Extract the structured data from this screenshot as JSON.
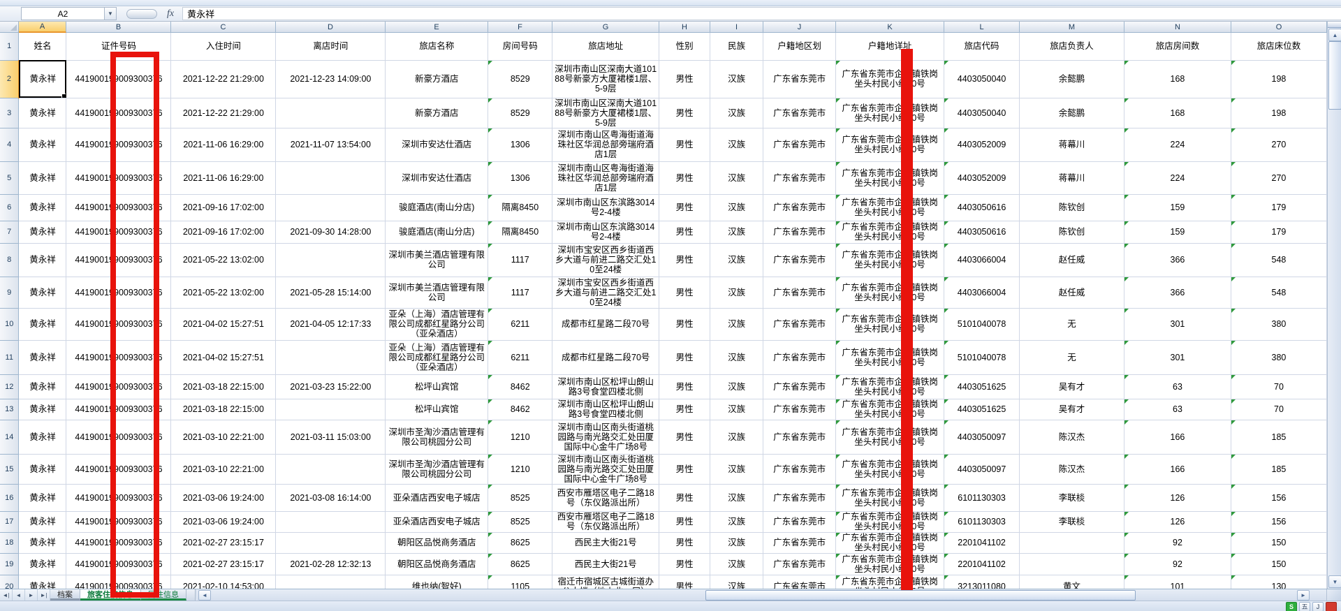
{
  "window": {
    "name_box": "A2",
    "formula_value": "黄永祥",
    "fx": "fx"
  },
  "columns": [
    {
      "letter": "A",
      "label": "姓名"
    },
    {
      "letter": "B",
      "label": "证件号码"
    },
    {
      "letter": "C",
      "label": "入住时间"
    },
    {
      "letter": "D",
      "label": "离店时间"
    },
    {
      "letter": "E",
      "label": "旅店名称"
    },
    {
      "letter": "F",
      "label": "房间号码"
    },
    {
      "letter": "G",
      "label": "旅店地址"
    },
    {
      "letter": "H",
      "label": "性别"
    },
    {
      "letter": "I",
      "label": "民族"
    },
    {
      "letter": "J",
      "label": "户籍地区划"
    },
    {
      "letter": "K",
      "label": "户籍地详址"
    },
    {
      "letter": "L",
      "label": "旅店代码"
    },
    {
      "letter": "M",
      "label": "旅店负责人"
    },
    {
      "letter": "N",
      "label": "旅店房间数"
    },
    {
      "letter": "O",
      "label": "旅店床位数"
    }
  ],
  "rows": [
    {
      "num": 2,
      "name": "黄永祥",
      "id": "441900199009300376",
      "in": "2021-12-22 21:29:00",
      "out": "2021-12-23 14:09:00",
      "hotel": "新豪方酒店",
      "room": "8529",
      "addr": "深圳市南山区深南大道10188号新豪方大厦裙楼1层、5-9层",
      "sex": "男性",
      "eth": "汉族",
      "reg": "广东省东莞市",
      "detail": "广东省东莞市企石镇铁岗坐头村民小组10号",
      "code": "4403050040",
      "mgr": "余懿鹏",
      "rooms": "168",
      "beds": "198"
    },
    {
      "num": 3,
      "name": "黄永祥",
      "id": "441900199009300376",
      "in": "2021-12-22 21:29:00",
      "out": "",
      "hotel": "新豪方酒店",
      "room": "8529",
      "addr": "深圳市南山区深南大道10188号新豪方大厦裙楼1层、5-9层",
      "sex": "男性",
      "eth": "汉族",
      "reg": "广东省东莞市",
      "detail": "广东省东莞市企石镇铁岗坐头村民小组10号",
      "code": "4403050040",
      "mgr": "余懿鹏",
      "rooms": "168",
      "beds": "198"
    },
    {
      "num": 4,
      "name": "黄永祥",
      "id": "441900199009300376",
      "in": "2021-11-06 16:29:00",
      "out": "2021-11-07 13:54:00",
      "hotel": "深圳市安达仕酒店",
      "room": "1306",
      "addr": "深圳市南山区粤海街道海珠社区华润总部旁瑞府酒店1层",
      "sex": "男性",
      "eth": "汉族",
      "reg": "广东省东莞市",
      "detail": "广东省东莞市企石镇铁岗坐头村民小组10号",
      "code": "4403052009",
      "mgr": "蒋幕川",
      "rooms": "224",
      "beds": "270"
    },
    {
      "num": 5,
      "name": "黄永祥",
      "id": "441900199009300376",
      "in": "2021-11-06 16:29:00",
      "out": "",
      "hotel": "深圳市安达仕酒店",
      "room": "1306",
      "addr": "深圳市南山区粤海街道海珠社区华润总部旁瑞府酒店1层",
      "sex": "男性",
      "eth": "汉族",
      "reg": "广东省东莞市",
      "detail": "广东省东莞市企石镇铁岗坐头村民小组10号",
      "code": "4403052009",
      "mgr": "蒋幕川",
      "rooms": "224",
      "beds": "270"
    },
    {
      "num": 6,
      "name": "黄永祥",
      "id": "441900199009300376",
      "in": "2021-09-16 17:02:00",
      "out": "",
      "hotel": "骏庭酒店(南山分店)",
      "room": "隔离8450",
      "addr": "深圳市南山区东滨路3014号2-4楼",
      "sex": "男性",
      "eth": "汉族",
      "reg": "广东省东莞市",
      "detail": "广东省东莞市企石镇铁岗坐头村民小组10号",
      "code": "4403050616",
      "mgr": "陈钦创",
      "rooms": "159",
      "beds": "179"
    },
    {
      "num": 7,
      "name": "黄永祥",
      "id": "441900199009300376",
      "in": "2021-09-16 17:02:00",
      "out": "2021-09-30 14:28:00",
      "hotel": "骏庭酒店(南山分店)",
      "room": "隔离8450",
      "addr": "深圳市南山区东滨路3014号2-4楼",
      "sex": "男性",
      "eth": "汉族",
      "reg": "广东省东莞市",
      "detail": "广东省东莞市企石镇铁岗坐头村民小组10号",
      "code": "4403050616",
      "mgr": "陈钦创",
      "rooms": "159",
      "beds": "179"
    },
    {
      "num": 8,
      "name": "黄永祥",
      "id": "441900199009300376",
      "in": "2021-05-22 13:02:00",
      "out": "",
      "hotel": "深圳市美兰酒店管理有限公司",
      "room": "1117",
      "addr": "深圳市宝安区西乡街道西乡大道与前进二路交汇处10至24楼",
      "sex": "男性",
      "eth": "汉族",
      "reg": "广东省东莞市",
      "detail": "广东省东莞市企石镇铁岗坐头村民小组10号",
      "code": "4403066004",
      "mgr": "赵任威",
      "rooms": "366",
      "beds": "548"
    },
    {
      "num": 9,
      "name": "黄永祥",
      "id": "441900199009300376",
      "in": "2021-05-22 13:02:00",
      "out": "2021-05-28 15:14:00",
      "hotel": "深圳市美兰酒店管理有限公司",
      "room": "1117",
      "addr": "深圳市宝安区西乡街道西乡大道与前进二路交汇处10至24楼",
      "sex": "男性",
      "eth": "汉族",
      "reg": "广东省东莞市",
      "detail": "广东省东莞市企石镇铁岗坐头村民小组10号",
      "code": "4403066004",
      "mgr": "赵任威",
      "rooms": "366",
      "beds": "548"
    },
    {
      "num": 10,
      "name": "黄永祥",
      "id": "441900199009300376",
      "in": "2021-04-02 15:27:51",
      "out": "2021-04-05 12:17:33",
      "hotel": "亚朵（上海）酒店管理有限公司成都红星路分公司（亚朵酒店）",
      "room": "6211",
      "addr": "成都市红星路二段70号",
      "sex": "男性",
      "eth": "汉族",
      "reg": "广东省东莞市",
      "detail": "广东省东莞市企石镇铁岗坐头村民小组10号",
      "code": "5101040078",
      "mgr": "无",
      "rooms": "301",
      "beds": "380"
    },
    {
      "num": 11,
      "name": "黄永祥",
      "id": "441900199009300376",
      "in": "2021-04-02 15:27:51",
      "out": "",
      "hotel": "亚朵（上海）酒店管理有限公司成都红星路分公司（亚朵酒店）",
      "room": "6211",
      "addr": "成都市红星路二段70号",
      "sex": "男性",
      "eth": "汉族",
      "reg": "广东省东莞市",
      "detail": "广东省东莞市企石镇铁岗坐头村民小组10号",
      "code": "5101040078",
      "mgr": "无",
      "rooms": "301",
      "beds": "380"
    },
    {
      "num": 12,
      "name": "黄永祥",
      "id": "441900199009300376",
      "in": "2021-03-18 22:15:00",
      "out": "2021-03-23 15:22:00",
      "hotel": "松坪山宾馆",
      "room": "8462",
      "addr": "深圳市南山区松坪山朗山路3号食堂四楼北侧",
      "sex": "男性",
      "eth": "汉族",
      "reg": "广东省东莞市",
      "detail": "广东省东莞市企石镇铁岗坐头村民小组10号",
      "code": "4403051625",
      "mgr": "吴有才",
      "rooms": "63",
      "beds": "70"
    },
    {
      "num": 13,
      "name": "黄永祥",
      "id": "441900199009300376",
      "in": "2021-03-18 22:15:00",
      "out": "",
      "hotel": "松坪山宾馆",
      "room": "8462",
      "addr": "深圳市南山区松坪山朗山路3号食堂四楼北侧",
      "sex": "男性",
      "eth": "汉族",
      "reg": "广东省东莞市",
      "detail": "广东省东莞市企石镇铁岗坐头村民小组10号",
      "code": "4403051625",
      "mgr": "吴有才",
      "rooms": "63",
      "beds": "70"
    },
    {
      "num": 14,
      "name": "黄永祥",
      "id": "441900199009300376",
      "in": "2021-03-10 22:21:00",
      "out": "2021-03-11 15:03:00",
      "hotel": "深圳市圣淘沙酒店管理有限公司桃园分公司",
      "room": "1210",
      "addr": "深圳市南山区南头街道桃园路与南光路交汇处田厦国际中心金牛广场8号",
      "sex": "男性",
      "eth": "汉族",
      "reg": "广东省东莞市",
      "detail": "广东省东莞市企石镇铁岗坐头村民小组10号",
      "code": "4403050097",
      "mgr": "陈汉杰",
      "rooms": "166",
      "beds": "185"
    },
    {
      "num": 15,
      "name": "黄永祥",
      "id": "441900199009300376",
      "in": "2021-03-10 22:21:00",
      "out": "",
      "hotel": "深圳市圣淘沙酒店管理有限公司桃园分公司",
      "room": "1210",
      "addr": "深圳市南山区南头街道桃园路与南光路交汇处田厦国际中心金牛广场8号",
      "sex": "男性",
      "eth": "汉族",
      "reg": "广东省东莞市",
      "detail": "广东省东莞市企石镇铁岗坐头村民小组10号",
      "code": "4403050097",
      "mgr": "陈汉杰",
      "rooms": "166",
      "beds": "185"
    },
    {
      "num": 16,
      "name": "黄永祥",
      "id": "441900199009300376",
      "in": "2021-03-06 19:24:00",
      "out": "2021-03-08 16:14:00",
      "hotel": "亚朵酒店西安电子城店",
      "room": "8525",
      "addr": "西安市雁塔区电子二路18号（东仪路派出所）",
      "sex": "男性",
      "eth": "汉族",
      "reg": "广东省东莞市",
      "detail": "广东省东莞市企石镇铁岗坐头村民小组10号",
      "code": "6101130303",
      "mgr": "李联棪",
      "rooms": "126",
      "beds": "156"
    },
    {
      "num": 17,
      "name": "黄永祥",
      "id": "441900199009300376",
      "in": "2021-03-06 19:24:00",
      "out": "",
      "hotel": "亚朵酒店西安电子城店",
      "room": "8525",
      "addr": "西安市雁塔区电子二路18号（东仪路派出所）",
      "sex": "男性",
      "eth": "汉族",
      "reg": "广东省东莞市",
      "detail": "广东省东莞市企石镇铁岗坐头村民小组10号",
      "code": "6101130303",
      "mgr": "李联棪",
      "rooms": "126",
      "beds": "156"
    },
    {
      "num": 18,
      "name": "黄永祥",
      "id": "441900199009300376",
      "in": "2021-02-27 23:15:17",
      "out": "",
      "hotel": "朝阳区品悦商务酒店",
      "room": "8625",
      "addr": "西民主大街21号",
      "sex": "男性",
      "eth": "汉族",
      "reg": "广东省东莞市",
      "detail": "广东省东莞市企石镇铁岗坐头村民小组10号",
      "code": "2201041102",
      "mgr": "",
      "rooms": "92",
      "beds": "150"
    },
    {
      "num": 19,
      "name": "黄永祥",
      "id": "441900199009300376",
      "in": "2021-02-27 23:15:17",
      "out": "2021-02-28 12:32:13",
      "hotel": "朝阳区品悦商务酒店",
      "room": "8625",
      "addr": "西民主大街21号",
      "sex": "男性",
      "eth": "汉族",
      "reg": "广东省东莞市",
      "detail": "广东省东莞市企石镇铁岗坐头村民小组10号",
      "code": "2201041102",
      "mgr": "",
      "rooms": "92",
      "beds": "150"
    },
    {
      "num": 20,
      "name": "黄永祥",
      "id": "441900199009300376",
      "in": "2021-02-10 14:53:00",
      "out": "",
      "hotel": "维也纳(智好)",
      "room": "1105",
      "addr": "宿迁市宿城区古城街道办公大楼（地上北一层）",
      "sex": "男性",
      "eth": "汉族",
      "reg": "广东省东莞市",
      "detail": "广东省东莞市企石镇铁岗坐头村民小组10号",
      "code": "3213011080",
      "mgr": "黄文",
      "rooms": "101",
      "beds": "130"
    }
  ],
  "sheet_tabs": [
    {
      "label": "档案",
      "active": false
    },
    {
      "label": "旅客住宿信息",
      "active": true
    },
    {
      "label": "同住信息",
      "active": false
    }
  ],
  "tab_nav": [
    "◄|",
    "◄",
    "►",
    "►|"
  ],
  "scroll_glyphs": {
    "up": "▲",
    "down": "▼",
    "left": "◄",
    "right": "►"
  },
  "annotation_color": "#e8130c",
  "tray_icons": [
    {
      "glyph": "S",
      "kind": "green"
    },
    {
      "glyph": "五",
      "kind": "plain"
    },
    {
      "glyph": "J",
      "kind": "plain"
    },
    {
      "glyph": "",
      "kind": "red"
    }
  ]
}
